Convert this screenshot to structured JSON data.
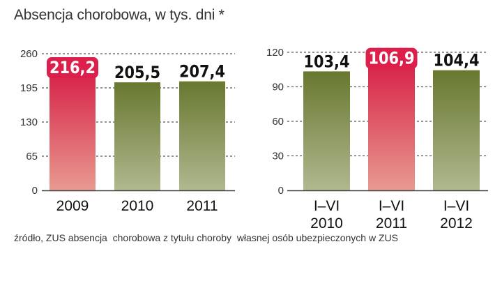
{
  "title": "Absencja chorobowa, w tys. dni *",
  "source": "źródło, ZUS absencja  chorobowa z tytułu choroby  własnej osób ubezpieczonych w ZUS",
  "colors": {
    "highlight_top": "#d8264a",
    "highlight_bottom": "#e89a90",
    "normal_top": "#68782f",
    "normal_bottom": "#b0b890",
    "label_badge": "#dc1f4b",
    "grid": "#555555"
  },
  "chart_data": [
    {
      "type": "bar",
      "categories": [
        "2009",
        "2010",
        "2011"
      ],
      "values": [
        216.2,
        205.5,
        207.4
      ],
      "value_labels": [
        "216,2",
        "205,5",
        "207,4"
      ],
      "highlight": [
        true,
        false,
        false
      ],
      "yticks": [
        0,
        65,
        130,
        195,
        260
      ],
      "ylim": [
        0,
        260
      ],
      "grid": true
    },
    {
      "type": "bar",
      "categories": [
        [
          "I–VI",
          "2010"
        ],
        [
          "I–VI",
          "2011"
        ],
        [
          "I–VI",
          "2012"
        ]
      ],
      "values": [
        103.4,
        106.9,
        104.4
      ],
      "value_labels": [
        "103,4",
        "106,9",
        "104,4"
      ],
      "highlight": [
        false,
        true,
        false
      ],
      "yticks": [
        0,
        30,
        60,
        90,
        120
      ],
      "ylim": [
        0,
        120
      ],
      "grid": true
    }
  ]
}
